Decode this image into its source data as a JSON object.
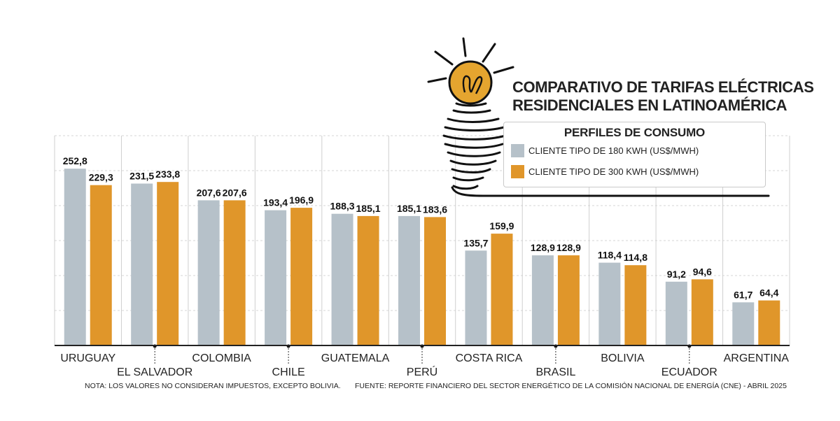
{
  "title": {
    "line1": "COMPARATIVO DE TARIFAS ELÉCTRICAS",
    "line2": "RESIDENCIALES EN LATINOAMÉRICA"
  },
  "legend": {
    "title": "PERFILES DE CONSUMO",
    "items": [
      {
        "label": "CLIENTE TIPO DE 180 KWH (US$/MWH)",
        "color": "#b6c1c9"
      },
      {
        "label": "CLIENTE TIPO DE 300 KWH (US$/MWH)",
        "color": "#e0962a"
      }
    ]
  },
  "footer": {
    "note": "NOTA: LOS VALORES NO CONSIDERAN IMPUESTOS, EXCEPTO BOLIVIA.",
    "source": "FUENTE: REPORTE FINANCIERO DEL SECTOR ENERGÉTICO DE LA COMISIÓN NACIONAL DE ENERGÍA (CNE) - ABRIL 2025"
  },
  "chart_data": {
    "type": "bar",
    "categories": [
      "URUGUAY",
      "EL SALVADOR",
      "COLOMBIA",
      "CHILE",
      "GUATEMALA",
      "PERÚ",
      "COSTA RICA",
      "BRASIL",
      "BOLIVIA",
      "ECUADOR",
      "ARGENTINA"
    ],
    "series": [
      {
        "name": "CLIENTE TIPO DE 180 KWH (US$/MWH)",
        "color": "#b6c1c9",
        "values": [
          252.8,
          231.5,
          207.6,
          193.4,
          188.3,
          185.1,
          135.7,
          128.9,
          118.4,
          91.2,
          61.7
        ],
        "labels": [
          "252,8",
          "231,5",
          "207,6",
          "193,4",
          "188,3",
          "185,1",
          "135,7",
          "128,9",
          "118,4",
          "91,2",
          "61,7"
        ]
      },
      {
        "name": "CLIENTE TIPO DE 300 KWH (US$/MWH)",
        "color": "#e0962a",
        "values": [
          229.3,
          233.8,
          207.6,
          196.9,
          185.1,
          183.6,
          159.9,
          128.9,
          114.8,
          94.6,
          64.4
        ],
        "labels": [
          "229,3",
          "233,8",
          "207,6",
          "196,9",
          "185,1",
          "183,6",
          "159,9",
          "128,9",
          "114,8",
          "94,6",
          "64,4"
        ]
      }
    ],
    "ylim": [
      0,
      300
    ],
    "grid": true,
    "legend_position": "top-right"
  }
}
